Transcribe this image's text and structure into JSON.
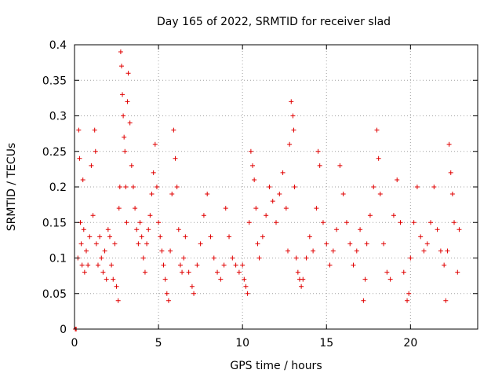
{
  "chart_data": {
    "type": "scatter",
    "title": "Day 165 of 2022, SRMTID for receiver slad",
    "xlabel": "GPS time / hours",
    "ylabel": "SRMTID / TECUs",
    "xlim": [
      0,
      24
    ],
    "ylim": [
      0,
      0.4
    ],
    "x_ticks": [
      0,
      5,
      10,
      15,
      20
    ],
    "x_tick_labels": [
      "0",
      "5",
      "10",
      "15",
      "20"
    ],
    "y_ticks": [
      0,
      0.05,
      0.1,
      0.15,
      0.2,
      0.25,
      0.3,
      0.35,
      0.4
    ],
    "y_tick_labels": [
      "0",
      "0.05",
      "0.1",
      "0.15",
      "0.2",
      "0.25",
      "0.3",
      "0.35",
      "0.4"
    ],
    "grid": true,
    "marker": "plus",
    "marker_color": "#e00000",
    "series": [
      {
        "name": "SRMTID",
        "points": [
          [
            0.05,
            0.0
          ],
          [
            0.1,
            0.0
          ],
          [
            0.2,
            0.1
          ],
          [
            0.25,
            0.28
          ],
          [
            0.3,
            0.24
          ],
          [
            0.35,
            0.15
          ],
          [
            0.4,
            0.12
          ],
          [
            0.45,
            0.09
          ],
          [
            0.5,
            0.21
          ],
          [
            0.55,
            0.14
          ],
          [
            0.6,
            0.08
          ],
          [
            0.7,
            0.11
          ],
          [
            0.8,
            0.09
          ],
          [
            0.9,
            0.13
          ],
          [
            1.0,
            0.23
          ],
          [
            1.1,
            0.16
          ],
          [
            1.2,
            0.28
          ],
          [
            1.25,
            0.25
          ],
          [
            1.3,
            0.12
          ],
          [
            1.4,
            0.09
          ],
          [
            1.5,
            0.13
          ],
          [
            1.6,
            0.1
          ],
          [
            1.7,
            0.08
          ],
          [
            1.8,
            0.11
          ],
          [
            1.9,
            0.07
          ],
          [
            2.0,
            0.14
          ],
          [
            2.1,
            0.13
          ],
          [
            2.2,
            0.09
          ],
          [
            2.3,
            0.07
          ],
          [
            2.4,
            0.12
          ],
          [
            2.5,
            0.06
          ],
          [
            2.6,
            0.04
          ],
          [
            2.65,
            0.17
          ],
          [
            2.7,
            0.2
          ],
          [
            2.75,
            0.39
          ],
          [
            2.8,
            0.37
          ],
          [
            2.85,
            0.33
          ],
          [
            2.9,
            0.3
          ],
          [
            2.95,
            0.27
          ],
          [
            3.0,
            0.25
          ],
          [
            3.05,
            0.2
          ],
          [
            3.1,
            0.15
          ],
          [
            3.15,
            0.32
          ],
          [
            3.2,
            0.36
          ],
          [
            3.3,
            0.29
          ],
          [
            3.4,
            0.23
          ],
          [
            3.5,
            0.2
          ],
          [
            3.6,
            0.17
          ],
          [
            3.7,
            0.14
          ],
          [
            3.8,
            0.12
          ],
          [
            3.9,
            0.15
          ],
          [
            4.0,
            0.13
          ],
          [
            4.1,
            0.1
          ],
          [
            4.2,
            0.08
          ],
          [
            4.3,
            0.12
          ],
          [
            4.4,
            0.14
          ],
          [
            4.5,
            0.16
          ],
          [
            4.6,
            0.19
          ],
          [
            4.7,
            0.22
          ],
          [
            4.8,
            0.26
          ],
          [
            4.9,
            0.2
          ],
          [
            5.0,
            0.15
          ],
          [
            5.1,
            0.13
          ],
          [
            5.2,
            0.11
          ],
          [
            5.3,
            0.09
          ],
          [
            5.4,
            0.07
          ],
          [
            5.5,
            0.05
          ],
          [
            5.6,
            0.04
          ],
          [
            5.7,
            0.11
          ],
          [
            5.8,
            0.19
          ],
          [
            5.9,
            0.28
          ],
          [
            6.0,
            0.24
          ],
          [
            6.1,
            0.2
          ],
          [
            6.2,
            0.14
          ],
          [
            6.3,
            0.09
          ],
          [
            6.4,
            0.08
          ],
          [
            6.5,
            0.1
          ],
          [
            6.6,
            0.13
          ],
          [
            6.8,
            0.08
          ],
          [
            7.0,
            0.06
          ],
          [
            7.1,
            0.05
          ],
          [
            7.3,
            0.09
          ],
          [
            7.5,
            0.12
          ],
          [
            7.7,
            0.16
          ],
          [
            7.9,
            0.19
          ],
          [
            8.1,
            0.13
          ],
          [
            8.3,
            0.1
          ],
          [
            8.5,
            0.08
          ],
          [
            8.7,
            0.07
          ],
          [
            8.9,
            0.09
          ],
          [
            9.0,
            0.17
          ],
          [
            9.2,
            0.13
          ],
          [
            9.4,
            0.1
          ],
          [
            9.6,
            0.09
          ],
          [
            9.8,
            0.08
          ],
          [
            10.0,
            0.09
          ],
          [
            10.1,
            0.07
          ],
          [
            10.2,
            0.06
          ],
          [
            10.3,
            0.05
          ],
          [
            10.4,
            0.15
          ],
          [
            10.5,
            0.25
          ],
          [
            10.6,
            0.23
          ],
          [
            10.7,
            0.21
          ],
          [
            10.8,
            0.17
          ],
          [
            10.9,
            0.12
          ],
          [
            11.0,
            0.1
          ],
          [
            11.2,
            0.13
          ],
          [
            11.4,
            0.16
          ],
          [
            11.6,
            0.2
          ],
          [
            11.8,
            0.18
          ],
          [
            12.0,
            0.15
          ],
          [
            12.2,
            0.19
          ],
          [
            12.4,
            0.22
          ],
          [
            12.6,
            0.17
          ],
          [
            12.7,
            0.11
          ],
          [
            12.8,
            0.26
          ],
          [
            12.9,
            0.32
          ],
          [
            13.0,
            0.3
          ],
          [
            13.05,
            0.28
          ],
          [
            13.1,
            0.2
          ],
          [
            13.2,
            0.1
          ],
          [
            13.3,
            0.08
          ],
          [
            13.4,
            0.07
          ],
          [
            13.5,
            0.06
          ],
          [
            13.6,
            0.07
          ],
          [
            13.8,
            0.1
          ],
          [
            14.0,
            0.13
          ],
          [
            14.2,
            0.11
          ],
          [
            14.4,
            0.17
          ],
          [
            14.5,
            0.25
          ],
          [
            14.6,
            0.23
          ],
          [
            14.8,
            0.15
          ],
          [
            15.0,
            0.12
          ],
          [
            15.2,
            0.09
          ],
          [
            15.4,
            0.11
          ],
          [
            15.6,
            0.14
          ],
          [
            15.8,
            0.23
          ],
          [
            16.0,
            0.19
          ],
          [
            16.2,
            0.15
          ],
          [
            16.4,
            0.12
          ],
          [
            16.6,
            0.09
          ],
          [
            16.8,
            0.11
          ],
          [
            17.0,
            0.14
          ],
          [
            17.2,
            0.04
          ],
          [
            17.3,
            0.07
          ],
          [
            17.4,
            0.12
          ],
          [
            17.6,
            0.16
          ],
          [
            17.8,
            0.2
          ],
          [
            18.0,
            0.28
          ],
          [
            18.1,
            0.24
          ],
          [
            18.2,
            0.19
          ],
          [
            18.4,
            0.12
          ],
          [
            18.6,
            0.08
          ],
          [
            18.8,
            0.07
          ],
          [
            19.0,
            0.16
          ],
          [
            19.2,
            0.21
          ],
          [
            19.4,
            0.15
          ],
          [
            19.6,
            0.08
          ],
          [
            19.8,
            0.04
          ],
          [
            19.9,
            0.05
          ],
          [
            20.0,
            0.1
          ],
          [
            20.2,
            0.15
          ],
          [
            20.4,
            0.2
          ],
          [
            20.6,
            0.13
          ],
          [
            20.8,
            0.11
          ],
          [
            21.0,
            0.12
          ],
          [
            21.2,
            0.15
          ],
          [
            21.4,
            0.2
          ],
          [
            21.6,
            0.14
          ],
          [
            21.8,
            0.11
          ],
          [
            22.0,
            0.09
          ],
          [
            22.1,
            0.04
          ],
          [
            22.2,
            0.11
          ],
          [
            22.3,
            0.26
          ],
          [
            22.4,
            0.22
          ],
          [
            22.5,
            0.19
          ],
          [
            22.6,
            0.15
          ],
          [
            22.8,
            0.08
          ],
          [
            22.9,
            0.14
          ]
        ]
      }
    ]
  }
}
